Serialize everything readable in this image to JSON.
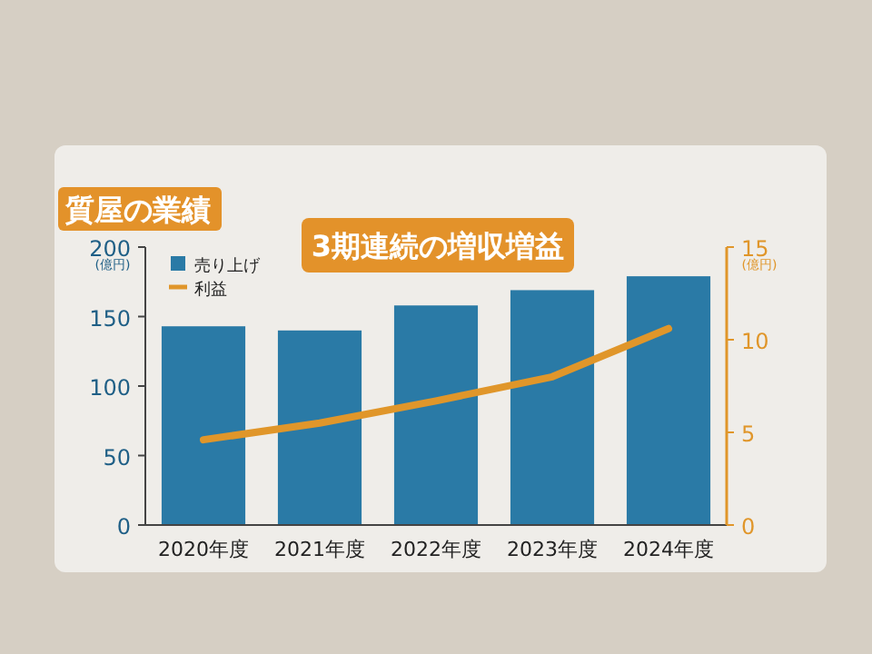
{
  "chart_data": {
    "type": "bar",
    "title": "質屋の業績",
    "subtitle": "3期連続の増収増益",
    "ylabel": "(億円)",
    "y2label": "(億円)",
    "categories": [
      "2020年度",
      "2021年度",
      "2022年度",
      "2023年度",
      "2024年度"
    ],
    "series": [
      {
        "name": "売り上げ",
        "color": "#2a7aa6",
        "values": [
          143,
          140,
          158,
          169,
          179
        ]
      },
      {
        "name": "利益",
        "type": "line",
        "axis": "y2",
        "color": "#e0962a",
        "values": [
          4.6,
          5.5,
          6.7,
          8.0,
          10.6
        ]
      }
    ],
    "ylim": [
      0,
      200
    ],
    "yticks": [
      0,
      50,
      100,
      150,
      200
    ],
    "y2lim": [
      0,
      15
    ],
    "y2ticks": [
      0,
      5,
      10,
      15
    ],
    "grid": false,
    "legend": "top left",
    "marker": "none",
    "line_style": "solid"
  }
}
